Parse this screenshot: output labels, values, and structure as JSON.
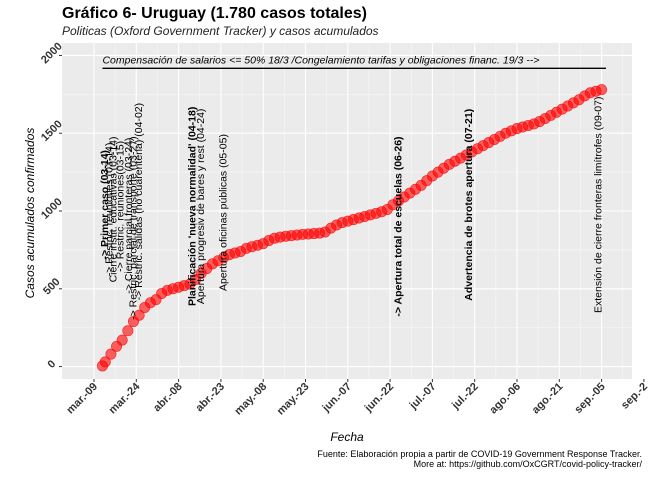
{
  "chart_data": {
    "type": "scatter",
    "title": "Gráfico 6- Uruguay (1.780 casos totales)",
    "subtitle": "Politicas (Oxford Government Tracker) y casos acumulados",
    "xlabel": "Fecha",
    "ylabel": "Casos acumulados confirmados",
    "caption": [
      "Fuente: Elaboración propia a partir de COVID-19 Government Response Tracker.",
      "More at: https://github.com/OxCGRT/covid-policy-tracker/"
    ],
    "x_ticks": [
      "mar.-09",
      "mar.-24",
      "abr.-08",
      "abr.-23",
      "may.-08",
      "may.-23",
      "jun.-07",
      "jun.-22",
      "jul.-07",
      "jul.-22",
      "ago.-06",
      "ago.-21",
      "sep.-05",
      "sep.-2"
    ],
    "y_ticks": [
      0,
      500,
      1000,
      1500,
      2000
    ],
    "ylim": [
      -80,
      2080
    ],
    "x_start_day": 0,
    "x_tick_step_days": 15,
    "grid": true,
    "point_color": "#ff0000",
    "series": [
      {
        "x": [
          3,
          4,
          6,
          8,
          10,
          12,
          14,
          16,
          18,
          20,
          22,
          24,
          26,
          28,
          30,
          32,
          34,
          36,
          38,
          40,
          42,
          44,
          46,
          48,
          50,
          52,
          54,
          56,
          58,
          60,
          62,
          64,
          66,
          68,
          70,
          72,
          74,
          76,
          78,
          80,
          82,
          84,
          86,
          88,
          90,
          92,
          94,
          96,
          98,
          100,
          102,
          104,
          106,
          108,
          110,
          112,
          114,
          116,
          118,
          120,
          122,
          124,
          126,
          128,
          130,
          132,
          134,
          136,
          138,
          140,
          142,
          144,
          146,
          148,
          150,
          152,
          154,
          156,
          158,
          160,
          162,
          164,
          166,
          168,
          170,
          172,
          174,
          176,
          178,
          180
        ],
        "y": [
          4,
          30,
          80,
          130,
          170,
          230,
          290,
          330,
          380,
          410,
          430,
          470,
          490,
          500,
          510,
          520,
          530,
          560,
          600,
          630,
          660,
          680,
          700,
          720,
          730,
          740,
          760,
          770,
          780,
          790,
          810,
          825,
          832,
          838,
          842,
          846,
          850,
          852,
          855,
          858,
          865,
          890,
          910,
          925,
          935,
          945,
          955,
          965,
          975,
          985,
          995,
          1010,
          1040,
          1065,
          1090,
          1115,
          1140,
          1165,
          1195,
          1225,
          1250,
          1275,
          1300,
          1320,
          1340,
          1360,
          1380,
          1400,
          1420,
          1440,
          1460,
          1480,
          1500,
          1515,
          1530,
          1540,
          1550,
          1560,
          1575,
          1595,
          1615,
          1635,
          1655,
          1675,
          1695,
          1715,
          1740,
          1760,
          1770,
          1780
        ]
      }
    ],
    "annotations": [
      {
        "text": "Compensación de salarios <= 50% 18/3 /Congelamiento tarifas y obligaciones financ. 19/3 -->",
        "orientation": "horizontal",
        "day": 3,
        "y": 1930
      },
      {
        "text": "-> Primer caso (03-14)",
        "bold": true,
        "day": 5,
        "y": 1040
      },
      {
        "text": "-> Restric. reuniones (03-14)",
        "bold": false,
        "day": 6.5,
        "y": 1010
      },
      {
        "text": "Cierre instit. educativas (03-14)",
        "bold": false,
        "day": 8,
        "y": 1010
      },
      {
        "text": "-> Restric. reuniones(03-15)",
        "bold": false,
        "day": 10.5,
        "y": 1030
      },
      {
        "text": "-> Cierre parcial fronteras (03-24)",
        "bold": false,
        "day": 13.5,
        "y": 970
      },
      {
        "text": "-> Restric. parcial de transporte (03-27)",
        "bold": false,
        "day": 15,
        "y": 890
      },
      {
        "text": "-> Restric. salidas (no cuarentena) (04-02)",
        "bold": false,
        "day": 17,
        "y": 1060
      },
      {
        "text": "Planificación 'nueva normalidad' (04-18)",
        "bold": true,
        "day": 36,
        "y": 1030
      },
      {
        "text": "Apertura progresiv de bares y rest (04-24)",
        "bold": false,
        "day": 39,
        "y": 1030
      },
      {
        "text": "Apertura oficinas públicas (05-05)",
        "bold": false,
        "day": 47,
        "y": 990
      },
      {
        "text": "-> Apertura total de escuelas (06-26)",
        "bold": true,
        "day": 109,
        "y": 900
      },
      {
        "text": "Advertencia de brotes apertura (07-21)",
        "bold": true,
        "day": 134,
        "y": 1040
      },
      {
        "text": "Extensión de cierre fronteras limítrofes (09-07)",
        "bold": false,
        "day": 180,
        "y": 1040
      }
    ]
  }
}
